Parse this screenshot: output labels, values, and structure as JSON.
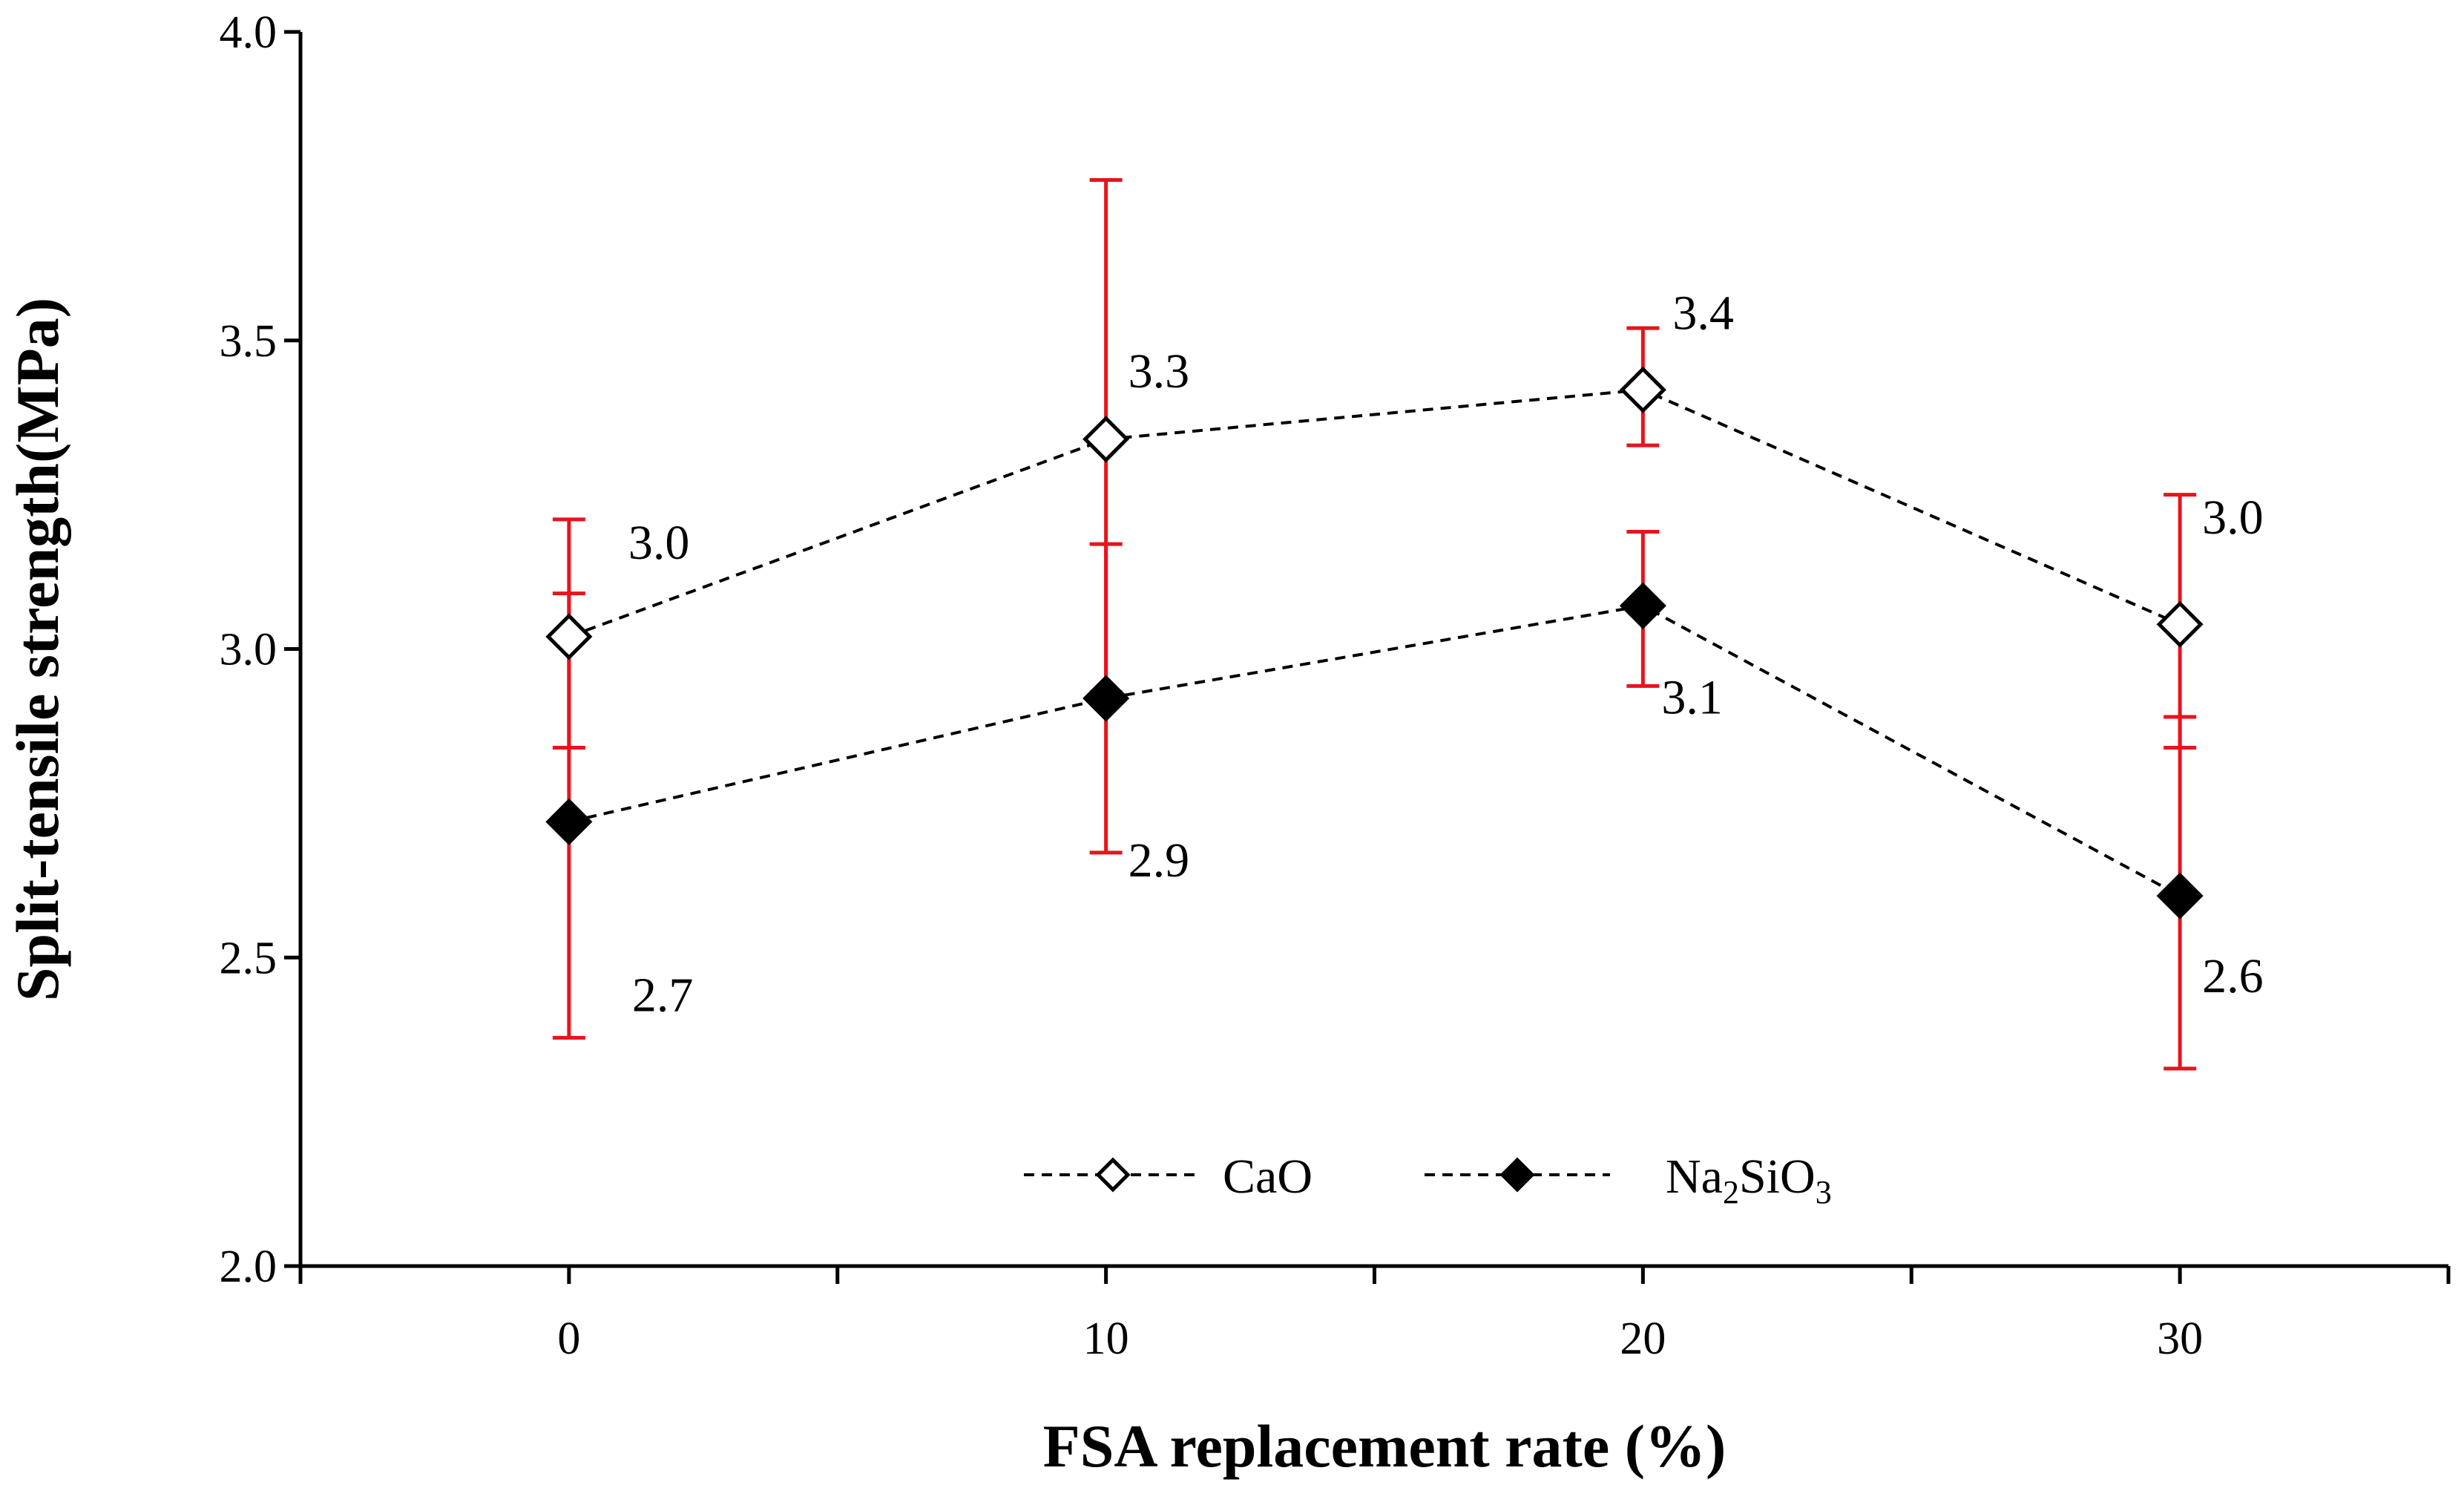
{
  "chart_data": {
    "type": "line",
    "xlabel": "FSA replacement rate (%)",
    "ylabel": "Split-tensile strength(MPa)",
    "xlim": [
      -5,
      35
    ],
    "ylim": [
      2.0,
      4.0
    ],
    "x_ticks": [
      0,
      10,
      20,
      30
    ],
    "x_tick_labels": [
      "0",
      "10",
      "20",
      "30"
    ],
    "y_ticks": [
      2.0,
      2.5,
      3.0,
      3.5,
      4.0
    ],
    "y_tick_labels": [
      "2.0",
      "2.5",
      "3.0",
      "3.5",
      "4.0"
    ],
    "grid": false,
    "legend_position": "bottom-center",
    "series": [
      {
        "name": "CaO",
        "name_base": "CaO",
        "marker": "open-diamond",
        "line_style": "dashed",
        "color": "#000000",
        "x": [
          0,
          10,
          20,
          30
        ],
        "values": [
          3.02,
          3.34,
          3.42,
          3.04
        ],
        "err_low": [
          2.84,
          2.93,
          3.33,
          2.84
        ],
        "err_high": [
          3.21,
          3.76,
          3.52,
          3.25
        ],
        "data_labels": [
          "3.0",
          "3.3",
          "3.4",
          "3.0"
        ]
      },
      {
        "name": "Na2SiO3",
        "name_base": "Na",
        "name_sub1": "2",
        "name_mid": "SiO",
        "name_sub2": "3",
        "marker": "filled-diamond",
        "line_style": "dashed",
        "color": "#000000",
        "x": [
          0,
          10,
          20,
          30
        ],
        "values": [
          2.72,
          2.92,
          3.07,
          2.6
        ],
        "err_low": [
          2.37,
          2.67,
          2.94,
          2.32
        ],
        "err_high": [
          3.09,
          3.17,
          3.19,
          2.89
        ],
        "data_labels": [
          "2.7",
          "2.9",
          "3.1",
          "2.6"
        ]
      }
    ],
    "error_bar_color": "#e8141c"
  }
}
